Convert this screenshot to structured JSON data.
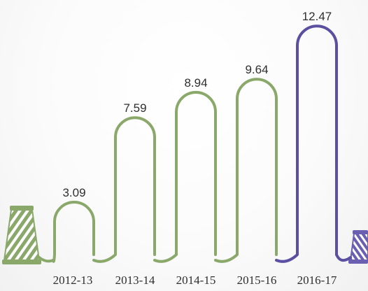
{
  "chart_data": {
    "type": "bar",
    "categories": [
      "2012-13",
      "2013-14",
      "2014-15",
      "2015-16",
      "2016-17"
    ],
    "values": [
      3.09,
      7.59,
      8.94,
      9.64,
      12.47
    ],
    "value_labels": [
      "3.09",
      "7.59",
      "8.94",
      "9.64",
      "12.47"
    ],
    "title": "",
    "xlabel": "",
    "ylabel": "",
    "ylim": [
      0,
      13
    ],
    "grid": false,
    "legend": "none",
    "colors": {
      "default": "#8aa86a",
      "highlight": "#5a4fa0",
      "highlight_category": "2016-17",
      "spool": "#8aa86a",
      "spool_highlight": "#6a5fb0"
    },
    "icons": [
      "thread-spool-left-icon",
      "thread-spool-right-icon"
    ]
  }
}
